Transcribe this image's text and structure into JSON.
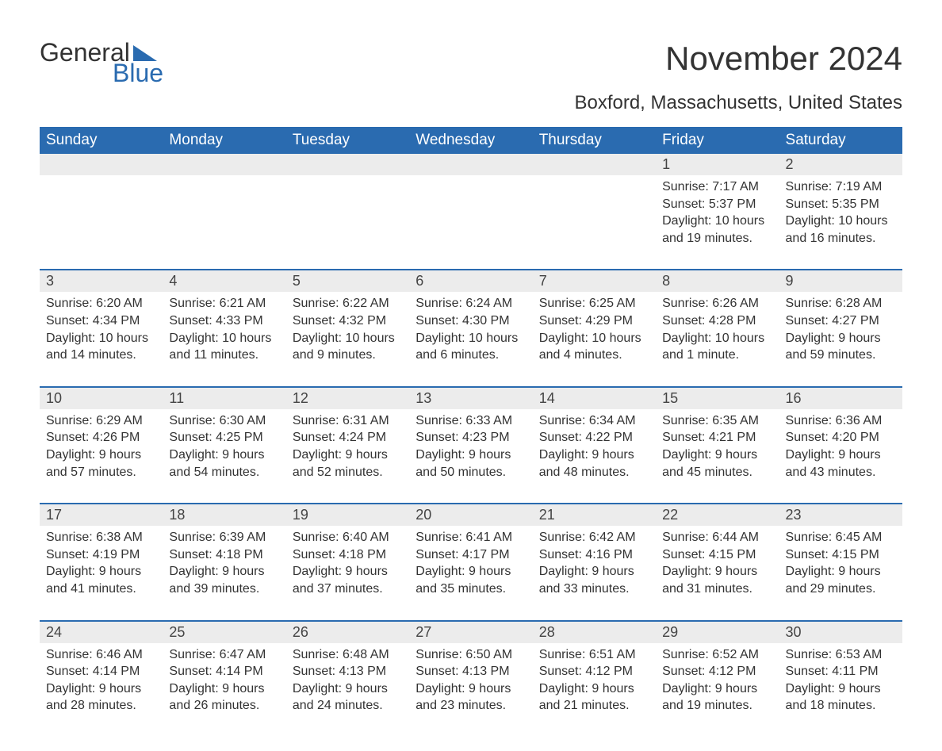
{
  "logo": {
    "word1": "General",
    "word2": "Blue",
    "triangle_color": "#2a6bb0"
  },
  "title": "November 2024",
  "subtitle": "Boxford, Massachusetts, United States",
  "colors": {
    "header_bg": "#2a6bb0",
    "header_text": "#ffffff",
    "daynum_bg": "#ececec",
    "row_border": "#2a6bb0",
    "body_text": "#333333"
  },
  "day_labels": [
    "Sunday",
    "Monday",
    "Tuesday",
    "Wednesday",
    "Thursday",
    "Friday",
    "Saturday"
  ],
  "weeks": [
    [
      null,
      null,
      null,
      null,
      null,
      {
        "n": "1",
        "sunrise": "7:17 AM",
        "sunset": "5:37 PM",
        "daylight": "10 hours and 19 minutes."
      },
      {
        "n": "2",
        "sunrise": "7:19 AM",
        "sunset": "5:35 PM",
        "daylight": "10 hours and 16 minutes."
      }
    ],
    [
      {
        "n": "3",
        "sunrise": "6:20 AM",
        "sunset": "4:34 PM",
        "daylight": "10 hours and 14 minutes."
      },
      {
        "n": "4",
        "sunrise": "6:21 AM",
        "sunset": "4:33 PM",
        "daylight": "10 hours and 11 minutes."
      },
      {
        "n": "5",
        "sunrise": "6:22 AM",
        "sunset": "4:32 PM",
        "daylight": "10 hours and 9 minutes."
      },
      {
        "n": "6",
        "sunrise": "6:24 AM",
        "sunset": "4:30 PM",
        "daylight": "10 hours and 6 minutes."
      },
      {
        "n": "7",
        "sunrise": "6:25 AM",
        "sunset": "4:29 PM",
        "daylight": "10 hours and 4 minutes."
      },
      {
        "n": "8",
        "sunrise": "6:26 AM",
        "sunset": "4:28 PM",
        "daylight": "10 hours and 1 minute."
      },
      {
        "n": "9",
        "sunrise": "6:28 AM",
        "sunset": "4:27 PM",
        "daylight": "9 hours and 59 minutes."
      }
    ],
    [
      {
        "n": "10",
        "sunrise": "6:29 AM",
        "sunset": "4:26 PM",
        "daylight": "9 hours and 57 minutes."
      },
      {
        "n": "11",
        "sunrise": "6:30 AM",
        "sunset": "4:25 PM",
        "daylight": "9 hours and 54 minutes."
      },
      {
        "n": "12",
        "sunrise": "6:31 AM",
        "sunset": "4:24 PM",
        "daylight": "9 hours and 52 minutes."
      },
      {
        "n": "13",
        "sunrise": "6:33 AM",
        "sunset": "4:23 PM",
        "daylight": "9 hours and 50 minutes."
      },
      {
        "n": "14",
        "sunrise": "6:34 AM",
        "sunset": "4:22 PM",
        "daylight": "9 hours and 48 minutes."
      },
      {
        "n": "15",
        "sunrise": "6:35 AM",
        "sunset": "4:21 PM",
        "daylight": "9 hours and 45 minutes."
      },
      {
        "n": "16",
        "sunrise": "6:36 AM",
        "sunset": "4:20 PM",
        "daylight": "9 hours and 43 minutes."
      }
    ],
    [
      {
        "n": "17",
        "sunrise": "6:38 AM",
        "sunset": "4:19 PM",
        "daylight": "9 hours and 41 minutes."
      },
      {
        "n": "18",
        "sunrise": "6:39 AM",
        "sunset": "4:18 PM",
        "daylight": "9 hours and 39 minutes."
      },
      {
        "n": "19",
        "sunrise": "6:40 AM",
        "sunset": "4:18 PM",
        "daylight": "9 hours and 37 minutes."
      },
      {
        "n": "20",
        "sunrise": "6:41 AM",
        "sunset": "4:17 PM",
        "daylight": "9 hours and 35 minutes."
      },
      {
        "n": "21",
        "sunrise": "6:42 AM",
        "sunset": "4:16 PM",
        "daylight": "9 hours and 33 minutes."
      },
      {
        "n": "22",
        "sunrise": "6:44 AM",
        "sunset": "4:15 PM",
        "daylight": "9 hours and 31 minutes."
      },
      {
        "n": "23",
        "sunrise": "6:45 AM",
        "sunset": "4:15 PM",
        "daylight": "9 hours and 29 minutes."
      }
    ],
    [
      {
        "n": "24",
        "sunrise": "6:46 AM",
        "sunset": "4:14 PM",
        "daylight": "9 hours and 28 minutes."
      },
      {
        "n": "25",
        "sunrise": "6:47 AM",
        "sunset": "4:14 PM",
        "daylight": "9 hours and 26 minutes."
      },
      {
        "n": "26",
        "sunrise": "6:48 AM",
        "sunset": "4:13 PM",
        "daylight": "9 hours and 24 minutes."
      },
      {
        "n": "27",
        "sunrise": "6:50 AM",
        "sunset": "4:13 PM",
        "daylight": "9 hours and 23 minutes."
      },
      {
        "n": "28",
        "sunrise": "6:51 AM",
        "sunset": "4:12 PM",
        "daylight": "9 hours and 21 minutes."
      },
      {
        "n": "29",
        "sunrise": "6:52 AM",
        "sunset": "4:12 PM",
        "daylight": "9 hours and 19 minutes."
      },
      {
        "n": "30",
        "sunrise": "6:53 AM",
        "sunset": "4:11 PM",
        "daylight": "9 hours and 18 minutes."
      }
    ]
  ],
  "labels": {
    "sunrise": "Sunrise: ",
    "sunset": "Sunset: ",
    "daylight": "Daylight: "
  }
}
